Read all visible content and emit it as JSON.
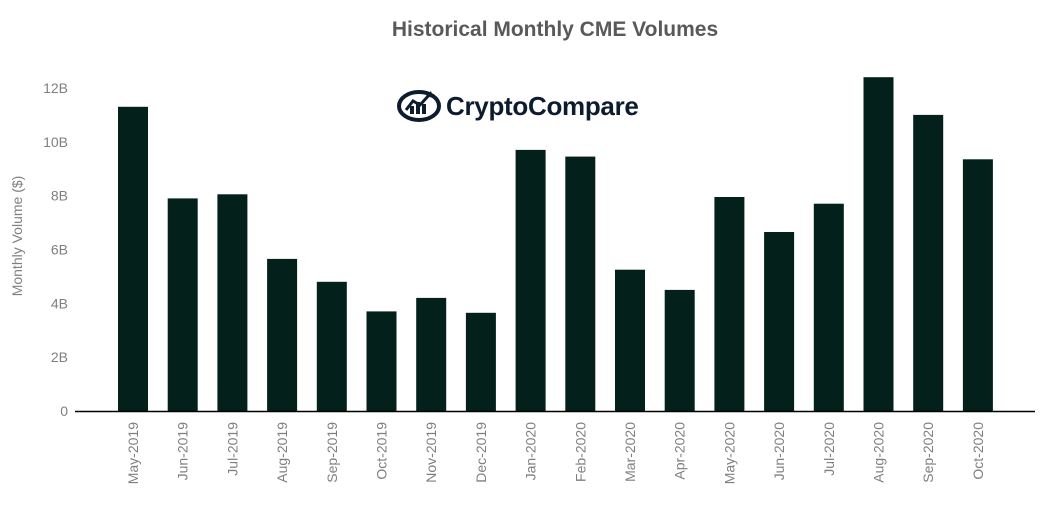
{
  "chart_data": {
    "type": "bar",
    "title": "Historical Monthly CME Volumes",
    "ylabel": "Monthly Volume ($)",
    "xlabel": "",
    "ylim": [
      0,
      12
    ],
    "y_ticks": [
      0,
      2,
      4,
      6,
      8,
      10,
      12
    ],
    "y_tick_labels": [
      "0",
      "2B",
      "4B",
      "6B",
      "8B",
      "10B",
      "12B"
    ],
    "unit": "billion USD",
    "categories": [
      "May-2019",
      "Jun-2019",
      "Jul-2019",
      "Aug-2019",
      "Sep-2019",
      "Oct-2019",
      "Nov-2019",
      "Dec-2019",
      "Jan-2020",
      "Feb-2020",
      "Mar-2020",
      "Apr-2020",
      "May-2020",
      "Jun-2020",
      "Jul-2020",
      "Aug-2020",
      "Sep-2020",
      "Oct-2020"
    ],
    "values": [
      11.3,
      7.9,
      8.05,
      5.65,
      4.8,
      3.7,
      4.2,
      3.65,
      9.7,
      9.45,
      5.25,
      4.5,
      7.95,
      6.65,
      7.7,
      12.4,
      11.0,
      9.35
    ],
    "bar_color": "#03201b",
    "axis_color": "#000000",
    "tick_label_color": "#7f7f7f",
    "grid": false,
    "legend": "none"
  },
  "watermark": {
    "text": "CryptoCompare",
    "icon": "cryptocompare-logo-icon"
  }
}
